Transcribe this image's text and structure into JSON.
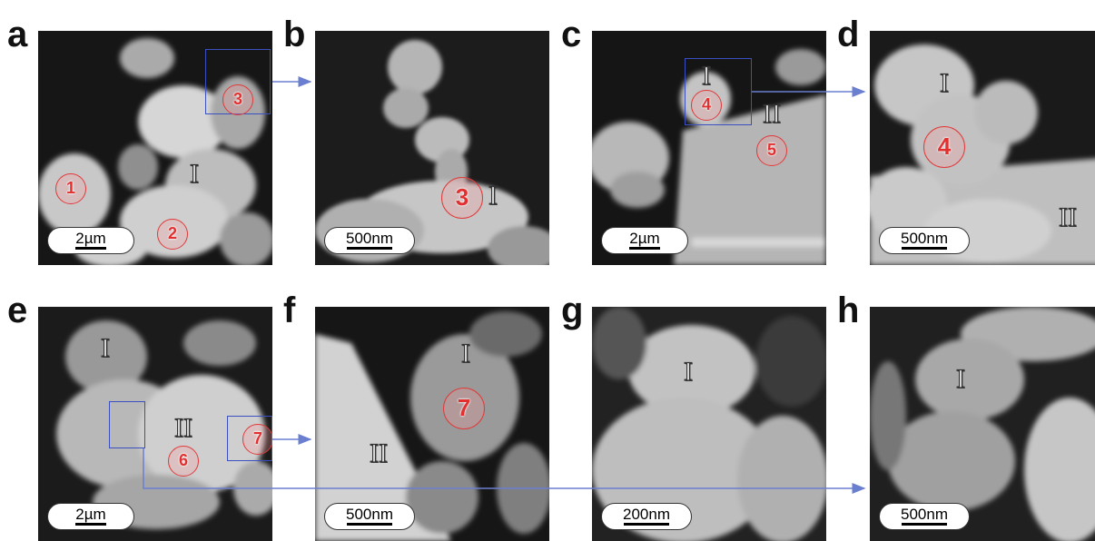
{
  "panels": [
    {
      "label": "a",
      "scale": "2µm",
      "roman": [
        "I"
      ],
      "markers": [
        "1",
        "2",
        "3"
      ]
    },
    {
      "label": "b",
      "scale": "500nm",
      "roman": [
        "I"
      ],
      "markers": [
        "3"
      ]
    },
    {
      "label": "c",
      "scale": "2µm",
      "roman": [
        "I",
        "II"
      ],
      "markers": [
        "4",
        "5"
      ]
    },
    {
      "label": "d",
      "scale": "500nm",
      "roman": [
        "I",
        "II"
      ],
      "markers": [
        "4"
      ]
    },
    {
      "label": "e",
      "scale": "2µm",
      "roman": [
        "I",
        "II"
      ],
      "markers": [
        "6",
        "7"
      ]
    },
    {
      "label": "f",
      "scale": "500nm",
      "roman": [
        "I",
        "II"
      ],
      "markers": [
        "7"
      ]
    },
    {
      "label": "g",
      "scale": "200nm",
      "roman": [
        "I"
      ],
      "markers": []
    },
    {
      "label": "h",
      "scale": "500nm",
      "roman": [
        "I"
      ],
      "markers": []
    }
  ],
  "colors": {
    "marker": "#e23030",
    "inset_box": "#3a4fc0",
    "arrow": "#6a7fd0",
    "background": "#222222"
  }
}
